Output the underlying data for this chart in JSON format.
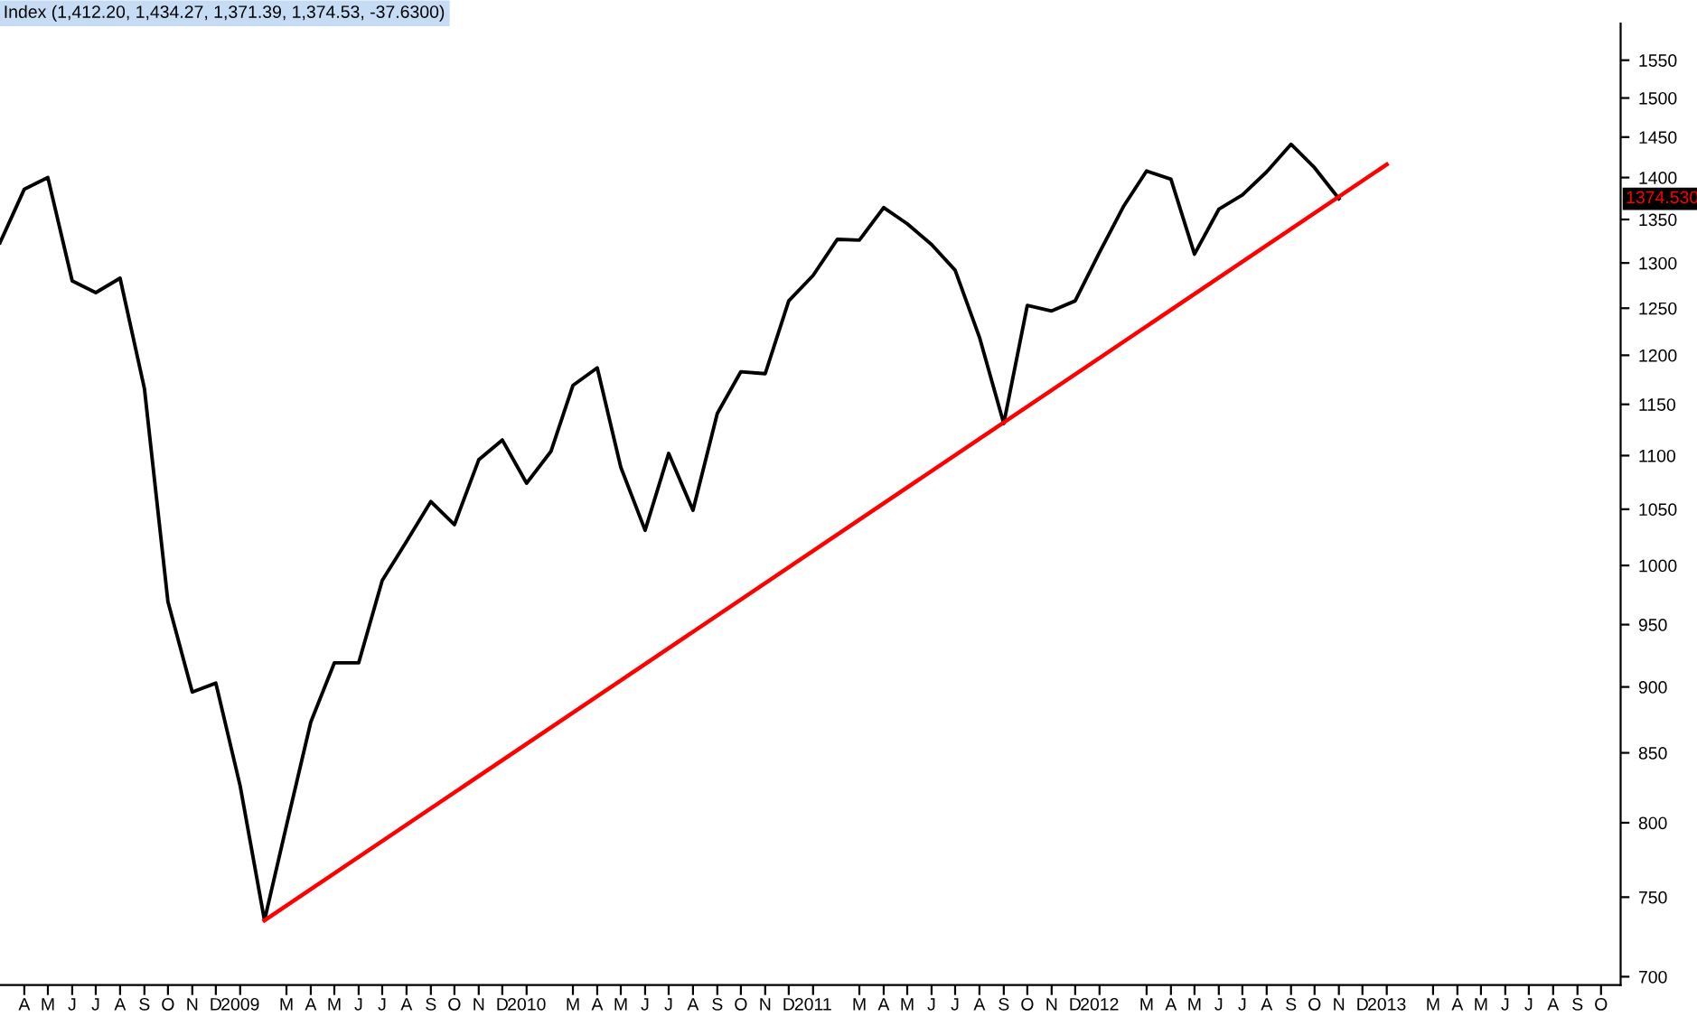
{
  "chart_data": {
    "type": "line",
    "title": "Index (1,412.20, 1,434.27, 1,371.39, 1,374.53, -37.6300)",
    "series": [
      {
        "color": "#000000",
        "x": [
          "2008-03",
          "2008-04",
          "2008-05",
          "2008-06",
          "2008-07",
          "2008-08",
          "2008-09",
          "2008-10",
          "2008-11",
          "2008-12",
          "2009-01",
          "2009-02",
          "2009-03",
          "2009-04",
          "2009-05",
          "2009-06",
          "2009-07",
          "2009-08",
          "2009-09",
          "2009-10",
          "2009-11",
          "2009-12",
          "2010-01",
          "2010-02",
          "2010-03",
          "2010-04",
          "2010-05",
          "2010-06",
          "2010-07",
          "2010-08",
          "2010-09",
          "2010-10",
          "2010-11",
          "2010-12",
          "2011-01",
          "2011-02",
          "2011-03",
          "2011-04",
          "2011-05",
          "2011-06",
          "2011-07",
          "2011-08",
          "2011-09",
          "2011-10",
          "2011-11",
          "2011-12",
          "2012-01",
          "2012-02",
          "2012-03",
          "2012-04",
          "2012-05",
          "2012-06",
          "2012-07",
          "2012-08",
          "2012-09",
          "2012-10",
          "2012-11"
        ],
        "values": [
          1323,
          1386,
          1400,
          1280,
          1267,
          1283,
          1166,
          969,
          896,
          903,
          826,
          735,
          798,
          873,
          919,
          919,
          987,
          1021,
          1057,
          1036,
          1096,
          1115,
          1074,
          1104,
          1169,
          1187,
          1089,
          1031,
          1102,
          1049,
          1141,
          1183,
          1181,
          1258,
          1286,
          1327,
          1326,
          1364,
          1345,
          1321,
          1292,
          1219,
          1131,
          1253,
          1247,
          1258,
          1312,
          1366,
          1408,
          1398,
          1310,
          1362,
          1379,
          1407,
          1441,
          1412,
          1374.53
        ]
      },
      {
        "color": "#ff0000",
        "x": [
          "2009-02",
          "2013-01"
        ],
        "values": [
          735,
          1416
        ]
      }
    ],
    "xlim": [
      "2008-03-01",
      "2013-10-26"
    ],
    "xticks": [
      {
        "value": "2008-04",
        "label": "A"
      },
      {
        "value": "2008-05",
        "label": "M"
      },
      {
        "value": "2008-06",
        "label": "J"
      },
      {
        "value": "2008-07",
        "label": "J"
      },
      {
        "value": "2008-08",
        "label": "A"
      },
      {
        "value": "2008-09",
        "label": "S"
      },
      {
        "value": "2008-10",
        "label": "O"
      },
      {
        "value": "2008-11",
        "label": "N"
      },
      {
        "value": "2008-12",
        "label": "D"
      },
      {
        "value": "2009-01",
        "label": "2009"
      },
      {
        "value": "2009-03",
        "label": "M"
      },
      {
        "value": "2009-04",
        "label": "A"
      },
      {
        "value": "2009-05",
        "label": "M"
      },
      {
        "value": "2009-06",
        "label": "J"
      },
      {
        "value": "2009-07",
        "label": "J"
      },
      {
        "value": "2009-08",
        "label": "A"
      },
      {
        "value": "2009-09",
        "label": "S"
      },
      {
        "value": "2009-10",
        "label": "O"
      },
      {
        "value": "2009-11",
        "label": "N"
      },
      {
        "value": "2009-12",
        "label": "D"
      },
      {
        "value": "2010-01",
        "label": "2010"
      },
      {
        "value": "2010-03",
        "label": "M"
      },
      {
        "value": "2010-04",
        "label": "A"
      },
      {
        "value": "2010-05",
        "label": "M"
      },
      {
        "value": "2010-06",
        "label": "J"
      },
      {
        "value": "2010-07",
        "label": "J"
      },
      {
        "value": "2010-08",
        "label": "A"
      },
      {
        "value": "2010-09",
        "label": "S"
      },
      {
        "value": "2010-10",
        "label": "O"
      },
      {
        "value": "2010-11",
        "label": "N"
      },
      {
        "value": "2010-12",
        "label": "D"
      },
      {
        "value": "2011-01",
        "label": "2011"
      },
      {
        "value": "2011-03",
        "label": "M"
      },
      {
        "value": "2011-04",
        "label": "A"
      },
      {
        "value": "2011-05",
        "label": "M"
      },
      {
        "value": "2011-06",
        "label": "J"
      },
      {
        "value": "2011-07",
        "label": "J"
      },
      {
        "value": "2011-08",
        "label": "A"
      },
      {
        "value": "2011-09",
        "label": "S"
      },
      {
        "value": "2011-10",
        "label": "O"
      },
      {
        "value": "2011-11",
        "label": "N"
      },
      {
        "value": "2011-12",
        "label": "D"
      },
      {
        "value": "2012-01",
        "label": "2012"
      },
      {
        "value": "2012-03",
        "label": "M"
      },
      {
        "value": "2012-04",
        "label": "A"
      },
      {
        "value": "2012-05",
        "label": "M"
      },
      {
        "value": "2012-06",
        "label": "J"
      },
      {
        "value": "2012-07",
        "label": "J"
      },
      {
        "value": "2012-08",
        "label": "A"
      },
      {
        "value": "2012-09",
        "label": "S"
      },
      {
        "value": "2012-10",
        "label": "O"
      },
      {
        "value": "2012-11",
        "label": "N"
      },
      {
        "value": "2012-12",
        "label": "D"
      },
      {
        "value": "2013-01",
        "label": "2013"
      },
      {
        "value": "2013-03",
        "label": "M"
      },
      {
        "value": "2013-04",
        "label": "A"
      },
      {
        "value": "2013-05",
        "label": "M"
      },
      {
        "value": "2013-06",
        "label": "J"
      },
      {
        "value": "2013-07",
        "label": "J"
      },
      {
        "value": "2013-08",
        "label": "A"
      },
      {
        "value": "2013-09",
        "label": "S"
      },
      {
        "value": "2013-10",
        "label": "O"
      }
    ],
    "log": true,
    "ylim": [
      695,
      1600
    ],
    "yticks": [
      700,
      750,
      800,
      850,
      900,
      950,
      1000,
      1050,
      1100,
      1150,
      1200,
      1250,
      1300,
      1350,
      1400,
      1450,
      1500,
      1550
    ],
    "annotations": [
      "1374.530"
    ],
    "grid": false,
    "marker": "none",
    "line_style": "solid"
  }
}
